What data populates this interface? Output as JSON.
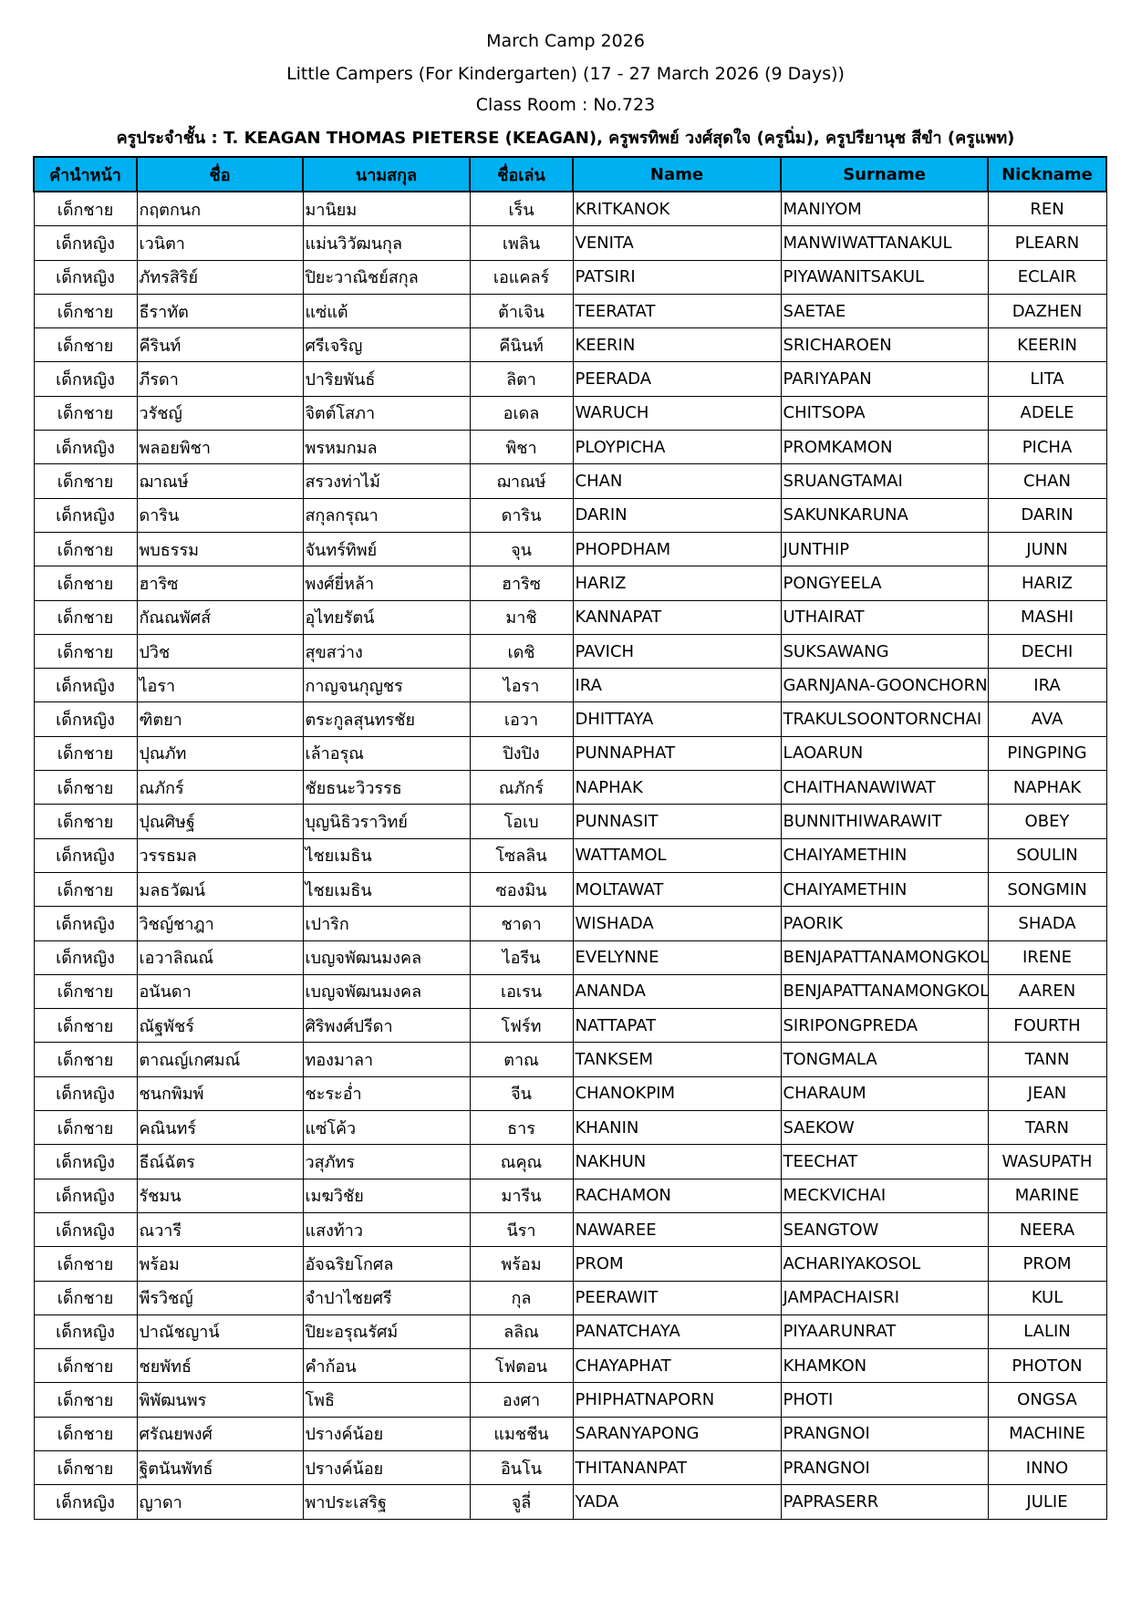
{
  "header": {
    "line1": "March Camp 2026",
    "line2": "Little Campers (For Kindergarten) (17 - 27 March 2026 (9 Days))",
    "line3": "Class Room : No.723",
    "line4": "ครูประจำชั้น : T. KEAGAN THOMAS PIETERSE (KEAGAN), ครูพรทิพย์ วงศ์สุดใจ (ครูนิ่ม), ครูปรียานุช สีขำ (ครูแพท)"
  },
  "colors": {
    "header_bg": "#00b0f0"
  },
  "table": {
    "columns": [
      "คำนำหน้า",
      "ชื่อ",
      "นามสกุล",
      "ชื่อเล่น",
      "Name",
      "Surname",
      "Nickname"
    ],
    "rows": [
      [
        "เด็กชาย",
        "กฤตกนก",
        "มานิยม",
        "เร็น",
        "KRITKANOK",
        "MANIYOM",
        "REN"
      ],
      [
        "เด็กหญิง",
        "เวนิตา",
        "แม่นวิวัฒนกุล",
        "เพลิน",
        "VENITA",
        "MANWIWATTANAKUL",
        "PLEARN"
      ],
      [
        "เด็กหญิง",
        "ภัทรสิริย์",
        "ปิยะวาณิชย์สกุล",
        "เอแคลร์",
        "PATSIRI",
        "PIYAWANITSAKUL",
        "ECLAIR"
      ],
      [
        "เด็กชาย",
        "ธีราทัต",
        "แซ่แต้",
        "ต้าเจิน",
        "TEERATAT",
        "SAETAE",
        "DAZHEN"
      ],
      [
        "เด็กชาย",
        "คีรินท์",
        "ศรีเจริญ",
        "คีนินท์",
        "KEERIN",
        "SRICHAROEN",
        "KEERIN"
      ],
      [
        "เด็กหญิง",
        "ภีรดา",
        "ปาริยพันธ์",
        "ลิตา",
        "PEERADA",
        "PARIYAPAN",
        "LITA"
      ],
      [
        "เด็กชาย",
        "วรัชญ์",
        "จิตต์โสภา",
        "อเดล",
        "WARUCH",
        "CHITSOPA",
        "ADELE"
      ],
      [
        "เด็กหญิง",
        "พลอยพิชา",
        "พรหมกมล",
        "พิชา",
        "PLOYPICHA",
        "PROMKAMON",
        "PICHA"
      ],
      [
        "เด็กชาย",
        "ฌาณษ์",
        "สรวงท่าไม้",
        "ฌาณษ์",
        "CHAN",
        "SRUANGTAMAI",
        "CHAN"
      ],
      [
        "เด็กหญิง",
        "ดาริน",
        "สกุลกรุณา",
        "ดาริน",
        "DARIN",
        "SAKUNKARUNA",
        "DARIN"
      ],
      [
        "เด็กชาย",
        "พบธรรม",
        "จันทร์ทิพย์",
        "จุน",
        "PHOPDHAM",
        "JUNTHIP",
        "JUNN"
      ],
      [
        "เด็กชาย",
        "ฮาริซ",
        "พงศ์ยี่หล้า",
        "ฮาริซ",
        "HARIZ",
        "PONGYEELA",
        "HARIZ"
      ],
      [
        "เด็กชาย",
        "กัณณพัศส์",
        "อุไทยรัตน์",
        "มาชิ",
        "KANNAPAT",
        "UTHAIRAT",
        "MASHI"
      ],
      [
        "เด็กชาย",
        "ปวิช",
        "สุขสว่าง",
        "เดชิ",
        "PAVICH",
        "SUKSAWANG",
        "DECHI"
      ],
      [
        "เด็กหญิง",
        "ไอรา",
        "กาญจนกุญชร",
        "ไอรา",
        "IRA",
        "GARNJANA-GOONCHORN",
        "IRA"
      ],
      [
        "เด็กหญิง",
        "ฑิตยา",
        "ตระกูลสุนทรชัย",
        "เอวา",
        "DHITTAYA",
        "TRAKULSOONTORNCHAI",
        "AVA"
      ],
      [
        "เด็กชาย",
        "ปุณภัท",
        "เล้าอรุณ",
        "ปิงปิง",
        "PUNNAPHAT",
        "LAOARUN",
        "PINGPING"
      ],
      [
        "เด็กชาย",
        "ณภักร์",
        "ชัยธนะวิวรรธ",
        "ณภักร์",
        "NAPHAK",
        "CHAITHANAWIWAT",
        "NAPHAK"
      ],
      [
        "เด็กชาย",
        "ปุณศิษฐ์",
        "บุญนิธิวราวิทย์",
        "โอเบ",
        "PUNNASIT",
        "BUNNITHIWARAWIT",
        "OBEY"
      ],
      [
        "เด็กหญิง",
        "วรรธมล",
        "ไชยเมธิน",
        "โซลลิน",
        "WATTAMOL",
        "CHAIYAMETHIN",
        "SOULIN"
      ],
      [
        "เด็กชาย",
        "มลธวัฒน์",
        "ไชยเมธิน",
        "ซองมิน",
        "MOLTAWAT",
        "CHAIYAMETHIN",
        "SONGMIN"
      ],
      [
        "เด็กหญิง",
        "วิชญ์ชาฎา",
        "เปาริก",
        "ชาดา",
        "WISHADA",
        "PAORIK",
        "SHADA"
      ],
      [
        "เด็กหญิง",
        "เอวาลิณณ์",
        "เบญจพัฒนมงคล",
        "ไอรีน",
        "EVELYNNE",
        "BENJAPATTANAMONGKOL",
        "IRENE"
      ],
      [
        "เด็กชาย",
        "อนันดา",
        "เบญจพัฒนมงคล",
        "เอเรน",
        "ANANDA",
        "BENJAPATTANAMONGKOL",
        "AAREN"
      ],
      [
        "เด็กชาย",
        "ณัฐพัชร์",
        "ศิริพงศ์ปรีดา",
        "โฟร์ท",
        "NATTAPAT",
        "SIRIPONGPREDA",
        "FOURTH"
      ],
      [
        "เด็กชาย",
        "ตาณญ์เกศมณ์",
        "ทองมาลา",
        "ตาณ",
        "TANKSEM",
        "TONGMALA",
        "TANN"
      ],
      [
        "เด็กหญิง",
        "ชนกพิมพ์",
        "ชะระอ่ำ",
        "จีน",
        "CHANOKPIM",
        "CHARAUM",
        "JEAN"
      ],
      [
        "เด็กชาย",
        "คณินทร์",
        "แซ่โค้ว",
        "ธาร",
        "KHANIN",
        "SAEKOW",
        "TARN"
      ],
      [
        "เด็กหญิง",
        "ธีณ์ฉัตร",
        "วสุภัทร",
        "ณคุณ",
        "NAKHUN",
        "TEECHAT",
        "WASUPATH"
      ],
      [
        "เด็กหญิง",
        "รัชมน",
        "เมฆวิชัย",
        "มารีน",
        "RACHAMON",
        "MECKVICHAI",
        "MARINE"
      ],
      [
        "เด็กหญิง",
        "ณวารี",
        "แสงท้าว",
        "นีรา",
        "NAWAREE",
        "SEANGTOW",
        "NEERA"
      ],
      [
        "เด็กชาย",
        "พร้อม",
        "อัจฉริยโกศล",
        "พร้อม",
        "PROM",
        "ACHARIYAKOSOL",
        "PROM"
      ],
      [
        "เด็กชาย",
        "พีรวิชญ์",
        "จำปาไชยศรี",
        "กุล",
        "PEERAWIT",
        "JAMPACHAISRI",
        "KUL"
      ],
      [
        "เด็กหญิง",
        "ปาณัชญาน์",
        "ปิยะอรุณรัศม์",
        "ลลิณ",
        "PANATCHAYA",
        "PIYAARUNRAT",
        "LALIN"
      ],
      [
        "เด็กชาย",
        "ชยพัทธ์",
        "คำก้อน",
        "โฟตอน",
        "CHAYAPHAT",
        "KHAMKON",
        "PHOTON"
      ],
      [
        "เด็กชาย",
        "พิพัฒนพร",
        "โพธิ",
        "องศา",
        "PHIPHATNAPORN",
        "PHOTI",
        "ONGSA"
      ],
      [
        "เด็กชาย",
        "ศรัณยพงศ์",
        "ปรางค์น้อย",
        "แมชชีน",
        "SARANYAPONG",
        "PRANGNOI",
        "MACHINE"
      ],
      [
        "เด็กชาย",
        "ฐิตนันพัทธ์",
        "ปรางค์น้อย",
        "อินโน",
        "THITANANPAT",
        "PRANGNOI",
        "INNO"
      ],
      [
        "เด็กหญิง",
        "ญาดา",
        "พาประเสริฐ",
        "จูลี่",
        "YADA",
        "PAPRASERR",
        "JULIE"
      ]
    ]
  }
}
